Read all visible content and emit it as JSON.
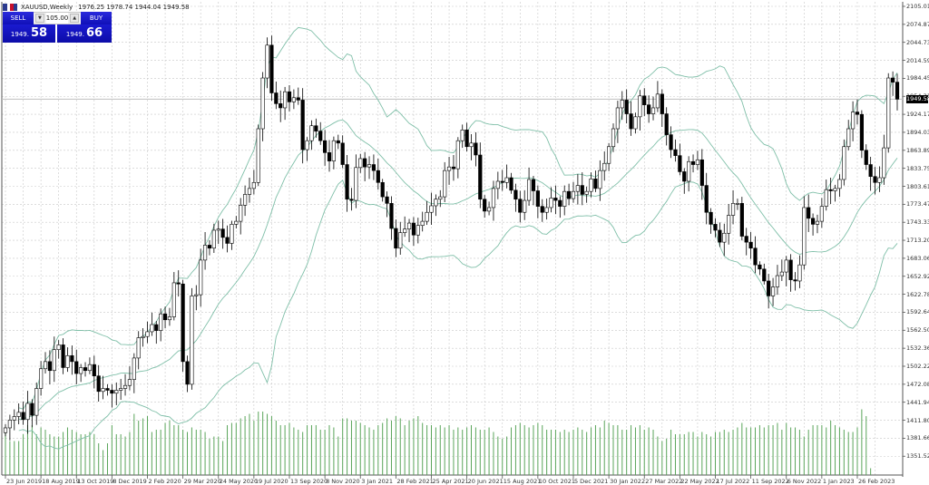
{
  "header": {
    "symbol": "XAUUSD,Weekly",
    "ohlc_text": "1976.25 1978.74 1944.04 1949.58"
  },
  "trade_panel": {
    "sell_label": "SELL",
    "buy_label": "BUY",
    "lot_value": "105.00",
    "down_arrow": "▼",
    "up_arrow": "▲",
    "sell_price_small": "1949.",
    "sell_price_big": "58",
    "buy_price_small": "1949.",
    "buy_price_big": "66"
  },
  "current_price_label": "1949.58",
  "colors": {
    "bull_fill": "#ffffff",
    "bear_fill": "#000000",
    "candle_outline": "#000000",
    "bollinger": "#7fbfa8",
    "volume": "#5aa55a",
    "grid": "#c8c8c8",
    "panel_blue": "#1a1ad0"
  },
  "chart_data": {
    "type": "candlestick",
    "title": "XAUUSD,Weekly",
    "xlabel": "",
    "ylabel": "",
    "ylim": [
      1336.0,
      2112.0
    ],
    "grid": true,
    "legend": "none",
    "y_ticks": [
      "2105.01",
      "2074.87",
      "2044.73",
      "2014.59",
      "1984.45",
      "1954.31",
      "1924.17",
      "1894.03",
      "1863.89",
      "1833.75",
      "1803.61",
      "1773.47",
      "1743.33",
      "1713.20",
      "1683.06",
      "1652.92",
      "1622.78",
      "1592.64",
      "1562.50",
      "1532.36",
      "1502.22",
      "1472.08",
      "1441.94",
      "1411.80",
      "1381.66",
      "1351.52"
    ],
    "x_ticks": [
      {
        "label": "23 Jun 2019",
        "week": 0
      },
      {
        "label": "18 Aug 2019",
        "week": 8
      },
      {
        "label": "13 Oct 2019",
        "week": 16
      },
      {
        "label": "8 Dec 2019",
        "week": 24
      },
      {
        "label": "2 Feb 2020",
        "week": 32
      },
      {
        "label": "29 Mar 2020",
        "week": 40
      },
      {
        "label": "24 May 2020",
        "week": 48
      },
      {
        "label": "19 Jul 2020",
        "week": 56
      },
      {
        "label": "13 Sep 2020",
        "week": 64
      },
      {
        "label": "8 Nov 2020",
        "week": 72
      },
      {
        "label": "3 Jan 2021",
        "week": 80
      },
      {
        "label": "28 Feb 2021",
        "week": 88
      },
      {
        "label": "25 Apr 2021",
        "week": 96
      },
      {
        "label": "20 Jun 2021",
        "week": 104
      },
      {
        "label": "15 Aug 2021",
        "week": 112
      },
      {
        "label": "10 Oct 2021",
        "week": 120
      },
      {
        "label": "5 Dec 2021",
        "week": 128
      },
      {
        "label": "30 Jan 2022",
        "week": 136
      },
      {
        "label": "27 Mar 2022",
        "week": 144
      },
      {
        "label": "22 May 2022",
        "week": 152
      },
      {
        "label": "17 Jul 2022",
        "week": 160
      },
      {
        "label": "11 Sep 2022",
        "week": 168
      },
      {
        "label": "6 Nov 2022",
        "week": 176
      },
      {
        "label": "1 Jan 2023",
        "week": 184
      },
      {
        "label": "26 Feb 2023",
        "week": 192
      }
    ],
    "close": [
      1399,
      1412,
      1418,
      1425,
      1413,
      1440,
      1420,
      1465,
      1498,
      1510,
      1495,
      1530,
      1538,
      1500,
      1520,
      1510,
      1490,
      1500,
      1495,
      1505,
      1486,
      1460,
      1465,
      1462,
      1457,
      1462,
      1465,
      1470,
      1480,
      1516,
      1550,
      1552,
      1560,
      1572,
      1562,
      1590,
      1580,
      1585,
      1642,
      1640,
      1510,
      1472,
      1620,
      1622,
      1680,
      1705,
      1700,
      1730,
      1732,
      1718,
      1708,
      1740,
      1745,
      1772,
      1790,
      1800,
      1810,
      1900,
      1985,
      2040,
      1960,
      1942,
      1935,
      1962,
      1945,
      1952,
      1948,
      1865,
      1880,
      1905,
      1896,
      1880,
      1860,
      1846,
      1880,
      1876,
      1840,
      1782,
      1780,
      1835,
      1850,
      1836,
      1840,
      1830,
      1810,
      1786,
      1775,
      1733,
      1700,
      1726,
      1732,
      1742,
      1722,
      1738,
      1745,
      1760,
      1771,
      1782,
      1786,
      1830,
      1836,
      1833,
      1880,
      1898,
      1870,
      1876,
      1856,
      1782,
      1762,
      1768,
      1800,
      1812,
      1810,
      1818,
      1797,
      1782,
      1760,
      1780,
      1815,
      1796,
      1770,
      1760,
      1768,
      1784,
      1780,
      1770,
      1795,
      1783,
      1795,
      1805,
      1790,
      1795,
      1816,
      1800,
      1830,
      1842,
      1870,
      1900,
      1935,
      1948,
      1925,
      1900,
      1920,
      1955,
      1940,
      1925,
      1935,
      1958,
      1925,
      1890,
      1865,
      1855,
      1828,
      1812,
      1845,
      1840,
      1848,
      1805,
      1760,
      1740,
      1730,
      1710,
      1725,
      1755,
      1775,
      1775,
      1720,
      1710,
      1700,
      1672,
      1665,
      1645,
      1620,
      1635,
      1654,
      1660,
      1680,
      1647,
      1645,
      1672,
      1768,
      1750,
      1740,
      1745,
      1770,
      1798,
      1796,
      1800,
      1815,
      1870,
      1900,
      1928,
      1924,
      1864,
      1840,
      1820,
      1810,
      1818,
      1868,
      1985,
      1978,
      1949.58
    ],
    "volume_relative": [
      0.38,
      0.3,
      0.3,
      0.3,
      0.36,
      0.44,
      0.44,
      0.36,
      0.42,
      0.4,
      0.36,
      0.34,
      0.34,
      0.38,
      0.42,
      0.4,
      0.38,
      0.36,
      0.36,
      0.38,
      0.36,
      0.28,
      0.22,
      0.28,
      0.44,
      0.36,
      0.36,
      0.34,
      0.38,
      0.54,
      0.48,
      0.5,
      0.52,
      0.38,
      0.4,
      0.4,
      0.46,
      0.48,
      0.44,
      0.44,
      0.4,
      0.38,
      0.42,
      0.4,
      0.4,
      0.38,
      0.32,
      0.34,
      0.34,
      0.3,
      0.44,
      0.46,
      0.46,
      0.5,
      0.52,
      0.54,
      0.48,
      0.56,
      0.56,
      0.54,
      0.52,
      0.48,
      0.44,
      0.44,
      0.46,
      0.42,
      0.4,
      0.38,
      0.44,
      0.44,
      0.44,
      0.4,
      0.4,
      0.44,
      0.42,
      0.34,
      0.5,
      0.5,
      0.48,
      0.48,
      0.46,
      0.44,
      0.42,
      0.4,
      0.44,
      0.46,
      0.5,
      0.48,
      0.52,
      0.5,
      0.44,
      0.48,
      0.5,
      0.52,
      0.46,
      0.44,
      0.44,
      0.42,
      0.44,
      0.42,
      0.44,
      0.4,
      0.42,
      0.4,
      0.42,
      0.44,
      0.42,
      0.4,
      0.4,
      0.42,
      0.38,
      0.34,
      0.32,
      0.34,
      0.42,
      0.44,
      0.46,
      0.44,
      0.42,
      0.44,
      0.46,
      0.44,
      0.4,
      0.4,
      0.4,
      0.38,
      0.4,
      0.38,
      0.4,
      0.42,
      0.4,
      0.38,
      0.42,
      0.44,
      0.42,
      0.48,
      0.46,
      0.44,
      0.44,
      0.4,
      0.4,
      0.44,
      0.42,
      0.44,
      0.4,
      0.42,
      0.4,
      0.34,
      0.3,
      0.32,
      0.4,
      0.36,
      0.36,
      0.36,
      0.38,
      0.38,
      0.34,
      0.38,
      0.36,
      0.34,
      0.38,
      0.38,
      0.4,
      0.38,
      0.4,
      0.42,
      0.46,
      0.42,
      0.42,
      0.42,
      0.44,
      0.42,
      0.44,
      0.44,
      0.46,
      0.4,
      0.46,
      0.42,
      0.42,
      0.4,
      0.34,
      0.4,
      0.44,
      0.44,
      0.44,
      0.42,
      0.48,
      0.44,
      0.42,
      0.4,
      0.38,
      0.38,
      0.42,
      0.58,
      0.52,
      0.06
    ]
  }
}
